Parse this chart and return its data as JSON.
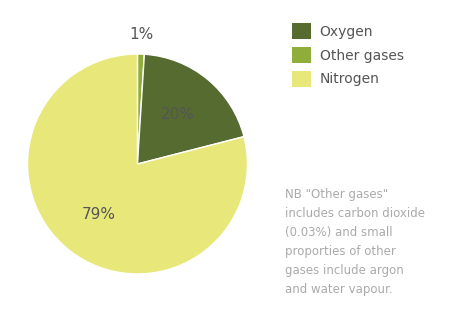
{
  "slices": [
    1,
    20,
    79
  ],
  "labels": [
    "Other gases",
    "Oxygen",
    "Nitrogen"
  ],
  "colors": [
    "#8fad3b",
    "#556b2f",
    "#e8e87a"
  ],
  "pct_labels": [
    "1%",
    "20%",
    "79%"
  ],
  "legend_order": [
    "Oxygen",
    "Other gases",
    "Nitrogen"
  ],
  "legend_colors": [
    "#556b2f",
    "#8fad3b",
    "#e8e87a"
  ],
  "note_text": "NB \"Other gases\"\nincludes carbon dioxide\n(0.03%) and small\nproporties of other\ngases include argon\nand water vapour.",
  "background_color": "#ffffff",
  "startangle": 90,
  "pct_fontsize": 11,
  "legend_fontsize": 10,
  "note_fontsize": 8.5,
  "note_color": "#aaaaaa",
  "label_color_dark": "#555555",
  "label_color_light": "#555555"
}
